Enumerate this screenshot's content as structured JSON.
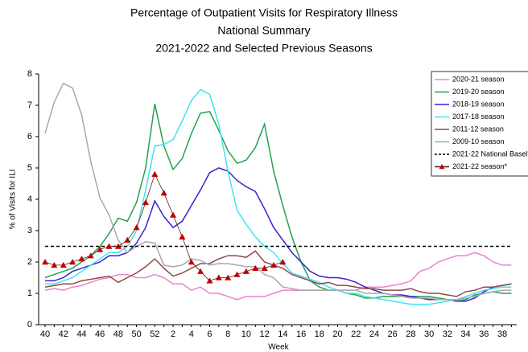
{
  "chart_data": {
    "type": "line",
    "title": [
      "Percentage of Outpatient Visits for Respiratory Illness",
      "National Summary",
      "2021-2022 and Selected Previous Seasons"
    ],
    "y_label": "% of Visits for ILI",
    "x_label": "Week",
    "categories": [
      40,
      null,
      42,
      null,
      44,
      null,
      46,
      null,
      48,
      null,
      50,
      null,
      52,
      null,
      2,
      null,
      4,
      null,
      6,
      null,
      8,
      null,
      10,
      null,
      12,
      null,
      14,
      null,
      16,
      null,
      18,
      null,
      20,
      null,
      22,
      null,
      24,
      null,
      26,
      null,
      28,
      null,
      30,
      null,
      32,
      null,
      34,
      null,
      36,
      null,
      38,
      null
    ],
    "ylim": [
      0,
      8
    ],
    "yticks": [
      0,
      1,
      2,
      3,
      4,
      5,
      6,
      7,
      8
    ],
    "legend": "upper right",
    "grid": false,
    "series": [
      {
        "name": "2020-21 season",
        "color": "#e982cc",
        "values": [
          1.1,
          1.15,
          1.1,
          1.2,
          1.25,
          1.35,
          1.45,
          1.5,
          1.6,
          1.6,
          1.5,
          1.5,
          1.6,
          1.5,
          1.3,
          1.3,
          1.1,
          1.2,
          1.0,
          1.0,
          0.9,
          0.8,
          0.9,
          0.9,
          0.9,
          1.0,
          1.1,
          1.1,
          1.1,
          1.1,
          1.1,
          1.1,
          1.1,
          1.1,
          1.1,
          1.2,
          1.2,
          1.2,
          1.25,
          1.3,
          1.4,
          1.7,
          1.8,
          2.0,
          2.1,
          2.2,
          2.2,
          2.3,
          2.2,
          2.0,
          1.9,
          1.9
        ]
      },
      {
        "name": "2019-20 season",
        "color": "#22a050",
        "values": [
          1.5,
          1.6,
          1.7,
          1.8,
          2.0,
          2.2,
          2.5,
          2.9,
          3.4,
          3.3,
          3.9,
          5.0,
          7.05,
          5.7,
          4.95,
          5.3,
          6.1,
          6.75,
          6.8,
          6.2,
          5.55,
          5.15,
          5.25,
          5.65,
          6.4,
          4.9,
          3.8,
          2.8,
          2.0,
          1.4,
          1.2,
          1.1,
          1.1,
          1.0,
          0.95,
          0.85,
          0.85,
          0.9,
          0.9,
          0.9,
          0.9,
          0.9,
          0.9,
          0.85,
          0.8,
          0.75,
          0.8,
          0.95,
          1.0,
          1.05,
          1.0,
          1.0
        ]
      },
      {
        "name": "2018-19 season",
        "color": "#3b1fd0",
        "values": [
          1.4,
          1.4,
          1.5,
          1.7,
          1.8,
          1.9,
          2.0,
          2.2,
          2.2,
          2.3,
          2.6,
          3.1,
          3.95,
          3.45,
          3.1,
          3.3,
          3.8,
          4.3,
          4.85,
          5.0,
          4.9,
          4.6,
          4.4,
          4.25,
          3.7,
          3.1,
          2.7,
          2.3,
          2.0,
          1.7,
          1.55,
          1.5,
          1.5,
          1.45,
          1.35,
          1.2,
          1.1,
          1.0,
          0.95,
          0.95,
          0.9,
          0.85,
          0.8,
          0.8,
          0.8,
          0.75,
          0.75,
          0.85,
          1.05,
          1.2,
          1.25,
          1.3
        ]
      },
      {
        "name": "2017-18 season",
        "color": "#3fe3f3",
        "values": [
          1.3,
          1.3,
          1.4,
          1.5,
          1.7,
          1.9,
          2.1,
          2.3,
          2.3,
          2.5,
          3.0,
          4.3,
          5.7,
          5.75,
          5.9,
          6.5,
          7.15,
          7.5,
          7.35,
          6.4,
          4.9,
          3.65,
          3.2,
          2.8,
          2.5,
          2.3,
          1.95,
          1.65,
          1.55,
          1.45,
          1.35,
          1.2,
          1.1,
          1.0,
          1.0,
          0.9,
          0.85,
          0.8,
          0.75,
          0.7,
          0.65,
          0.65,
          0.65,
          0.7,
          0.75,
          0.8,
          0.9,
          1.0,
          1.1,
          1.15,
          1.2,
          1.2
        ]
      },
      {
        "name": "2011-12 season",
        "color": "#8e4a4a",
        "values": [
          1.2,
          1.25,
          1.3,
          1.3,
          1.4,
          1.45,
          1.5,
          1.55,
          1.35,
          1.5,
          1.65,
          1.85,
          2.1,
          1.8,
          1.55,
          1.65,
          1.8,
          1.95,
          1.95,
          2.1,
          2.2,
          2.2,
          2.15,
          2.35,
          2.0,
          1.9,
          1.8,
          1.6,
          1.5,
          1.4,
          1.3,
          1.35,
          1.25,
          1.25,
          1.2,
          1.15,
          1.15,
          1.1,
          1.1,
          1.1,
          1.15,
          1.05,
          1.0,
          1.0,
          0.95,
          0.9,
          1.05,
          1.1,
          1.2,
          1.2,
          1.25,
          1.3
        ]
      },
      {
        "name": "2009-10 season",
        "color": "#a9a9a9",
        "values": [
          6.1,
          7.1,
          7.7,
          7.55,
          6.7,
          5.2,
          4.05,
          3.5,
          2.7,
          2.3,
          2.5,
          2.65,
          2.6,
          1.9,
          1.85,
          1.9,
          2.1,
          2.05,
          1.9,
          1.95,
          1.95,
          1.9,
          1.85,
          1.85,
          1.6,
          1.5,
          1.2,
          1.15,
          1.1,
          1.1,
          1.1,
          1.1,
          1.1,
          1.1,
          1.1,
          1.0,
          1.0,
          1.0,
          0.95,
          0.9,
          0.85,
          0.85,
          0.85,
          0.8,
          0.8,
          0.8,
          0.85,
          0.9,
          1.0,
          1.05,
          1.1,
          1.1
        ]
      },
      {
        "name": "2021-22 National Baseline",
        "color": "#000000",
        "dashed": true,
        "values": [
          2.5,
          2.5,
          2.5,
          2.5,
          2.5,
          2.5,
          2.5,
          2.5,
          2.5,
          2.5,
          2.5,
          2.5,
          2.5,
          2.5,
          2.5,
          2.5,
          2.5,
          2.5,
          2.5,
          2.5,
          2.5,
          2.5,
          2.5,
          2.5,
          2.5,
          2.5,
          2.5,
          2.5,
          2.5,
          2.5,
          2.5,
          2.5,
          2.5,
          2.5,
          2.5,
          2.5,
          2.5,
          2.5,
          2.5,
          2.5,
          2.5,
          2.5,
          2.5,
          2.5,
          2.5,
          2.5,
          2.5,
          2.5,
          2.5,
          2.5,
          2.5,
          2.5
        ]
      },
      {
        "name": "2021-22 season*",
        "color": "#c00000",
        "marker": "triangle",
        "values": [
          2.0,
          1.9,
          1.9,
          2.0,
          2.1,
          2.2,
          2.4,
          2.5,
          2.5,
          2.7,
          3.1,
          3.9,
          4.8,
          4.2,
          3.5,
          2.8,
          2.0,
          1.7,
          1.4,
          1.5,
          1.5,
          1.6,
          1.7,
          1.8,
          1.8,
          1.9,
          2.0,
          null,
          null,
          null,
          null,
          null,
          null,
          null,
          null,
          null,
          null,
          null,
          null,
          null,
          null,
          null,
          null,
          null,
          null,
          null,
          null,
          null,
          null,
          null,
          null,
          null
        ]
      }
    ]
  }
}
